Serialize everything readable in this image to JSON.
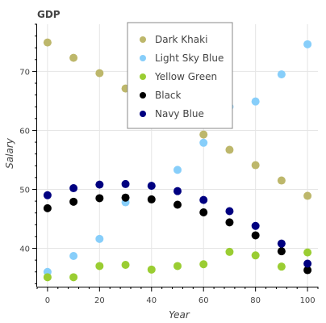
{
  "chart_data": {
    "type": "scatter",
    "title": "GDP",
    "xlabel": "Year",
    "ylabel": "Salary",
    "xlim": [
      -4,
      104
    ],
    "ylim": [
      33.5,
      78
    ],
    "x_ticks": [
      0,
      20,
      40,
      60,
      80,
      100
    ],
    "y_ticks": [
      40,
      50,
      60,
      70
    ],
    "grid": true,
    "legend_position": "top-center",
    "x": [
      0,
      10,
      20,
      30,
      40,
      50,
      60,
      70,
      80,
      90,
      100
    ],
    "series": [
      {
        "name": "Dark Khaki",
        "color": "#bdb76b",
        "values": [
          74.9,
          72.3,
          69.7,
          67.1,
          64.5,
          61.9,
          59.3,
          56.7,
          54.1,
          51.5,
          48.9
        ]
      },
      {
        "name": "Light Sky Blue",
        "color": "#87cefa",
        "values": [
          36.0,
          38.7,
          41.6,
          47.8,
          50.6,
          53.3,
          57.9,
          64.0,
          64.9,
          69.5,
          74.6
        ]
      },
      {
        "name": "Yellow Green",
        "color": "#9acd32",
        "values": [
          35.1,
          35.1,
          37.0,
          37.2,
          36.4,
          37.0,
          37.3,
          39.4,
          38.8,
          36.9,
          39.3
        ]
      },
      {
        "name": "Black",
        "color": "#000000",
        "values": [
          46.8,
          47.9,
          48.5,
          48.6,
          48.3,
          47.4,
          46.1,
          44.4,
          42.2,
          39.5,
          36.3
        ]
      },
      {
        "name": "Navy Blue",
        "color": "#000080",
        "values": [
          49.0,
          50.2,
          50.8,
          50.9,
          50.6,
          49.7,
          48.2,
          46.3,
          43.8,
          40.8,
          37.4
        ]
      }
    ]
  }
}
